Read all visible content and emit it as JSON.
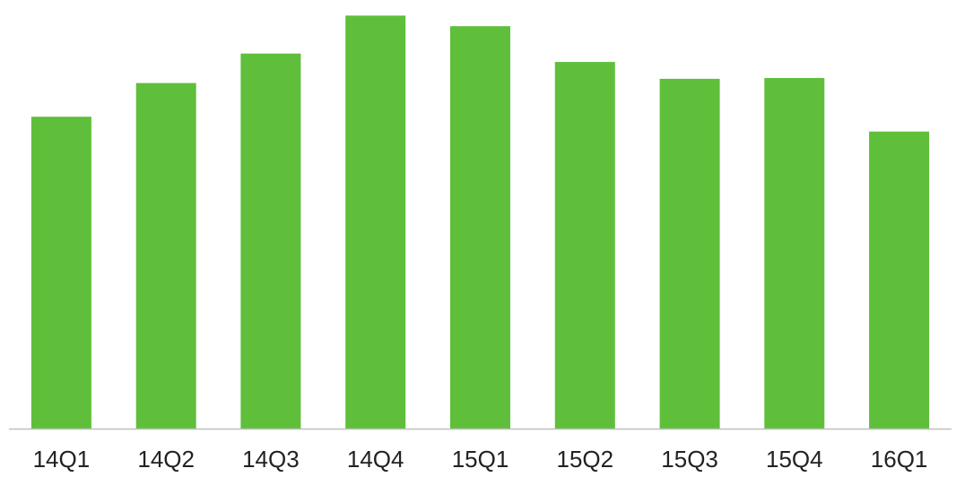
{
  "chart_data": {
    "type": "bar",
    "categories": [
      "14Q1",
      "14Q2",
      "14Q3",
      "14Q4",
      "15Q1",
      "15Q2",
      "15Q3",
      "15Q4",
      "16Q1"
    ],
    "values": [
      74,
      82,
      89,
      98,
      95.5,
      87,
      83,
      83.2,
      70.5
    ],
    "ylim": [
      0,
      100
    ],
    "grid": false,
    "legend": "none",
    "bar_color": "#5fbf3a",
    "axis_color": "#bfbfbf"
  }
}
